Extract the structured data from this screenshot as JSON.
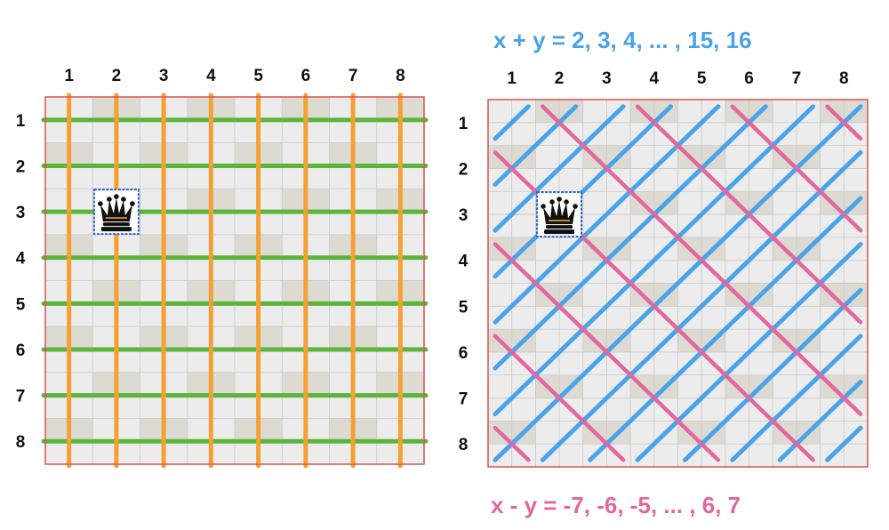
{
  "formulas": {
    "sum": "x + y = 2, 3, 4, ... , 15, 16",
    "diff": "x - y = -7, -6, -5, ... , 6, 7"
  },
  "columns": [
    "1",
    "2",
    "3",
    "4",
    "5",
    "6",
    "7",
    "8"
  ],
  "rows": [
    "1",
    "2",
    "3",
    "4",
    "5",
    "6",
    "7",
    "8"
  ],
  "queen": {
    "column": 2,
    "row": 3,
    "icon": "queen-icon"
  },
  "colors": {
    "row_line": "#5cb53a",
    "column_line": "#f4a034",
    "sum_diagonal": "#4aa3e8",
    "diff_diagonal": "#e2679f",
    "board_border": "#d9534f",
    "light_square": "#ececec",
    "dark_square": "#dddad2",
    "queen_frame": "#2c63c4"
  }
}
